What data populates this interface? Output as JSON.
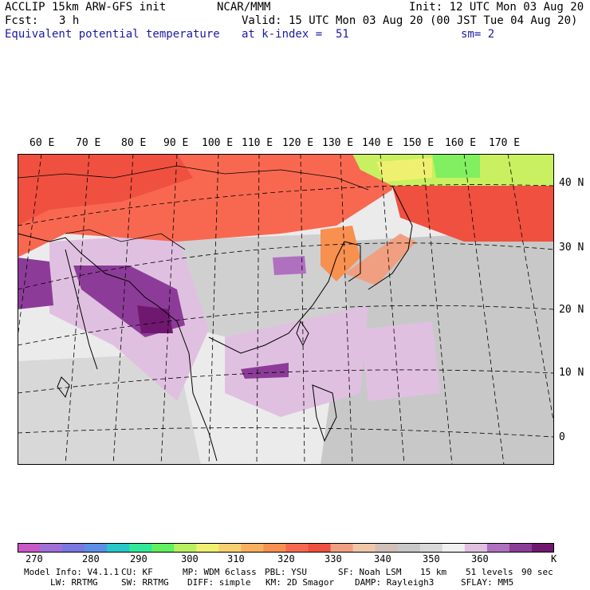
{
  "header": {
    "model_title": "ACCLIP 15km ARW-GFS init",
    "org": "NCAR/MMM",
    "init": "Init: 12 UTC Mon 03 Aug 20",
    "fcst_label": "Fcst:",
    "fcst_value": "3 h",
    "valid": "Valid: 15 UTC Mon 03 Aug 20 (00 JST Tue 04 Aug 20)",
    "field": "Equivalent potential temperature",
    "level": "at k-index =  51",
    "smoothing": "sm= 2"
  },
  "map": {
    "lon_labels": [
      "60 E",
      "70 E",
      "80 E",
      "90 E",
      "100 E",
      "110 E",
      "120 E",
      "130 E",
      "140 E",
      "150 E",
      "160 E",
      "170 E"
    ],
    "lat_labels": [
      "40 N",
      "30 N",
      "20 N",
      "10 N",
      "0"
    ]
  },
  "colorbar": {
    "colors": [
      "#c858c8",
      "#a070d8",
      "#7878e0",
      "#5c90e8",
      "#28c8c8",
      "#30e898",
      "#60f060",
      "#b8f060",
      "#f0f070",
      "#f8d070",
      "#f8b060",
      "#f89050",
      "#f86850",
      "#f05040",
      "#f0a080",
      "#f0c8a8",
      "#d0c0b8",
      "#c8c8c8",
      "#d8d8d8",
      "#f0f0f0",
      "#e0c0e0",
      "#b070c0",
      "#8c3c98",
      "#701870"
    ],
    "ticks": [
      "270",
      "280",
      "290",
      "300",
      "310",
      "320",
      "330",
      "340",
      "350",
      "360"
    ],
    "unit": "K"
  },
  "footer": {
    "model_info": "Model Info: V4.1.1",
    "cu": "CU: KF",
    "mp": "MP: WDM 6class",
    "pbl": "PBL: YSU",
    "sf": "SF: Noah LSM",
    "res": "15 km",
    "levels": "51 levels",
    "dt": "90 sec",
    "lw": "LW: RRTMG",
    "sw": "SW: RRTMG",
    "diff": "DIFF: simple",
    "km": "KM: 2D Smagor",
    "damp": "DAMP: Rayleigh3",
    "sflay": "SFLAY: MM5"
  }
}
